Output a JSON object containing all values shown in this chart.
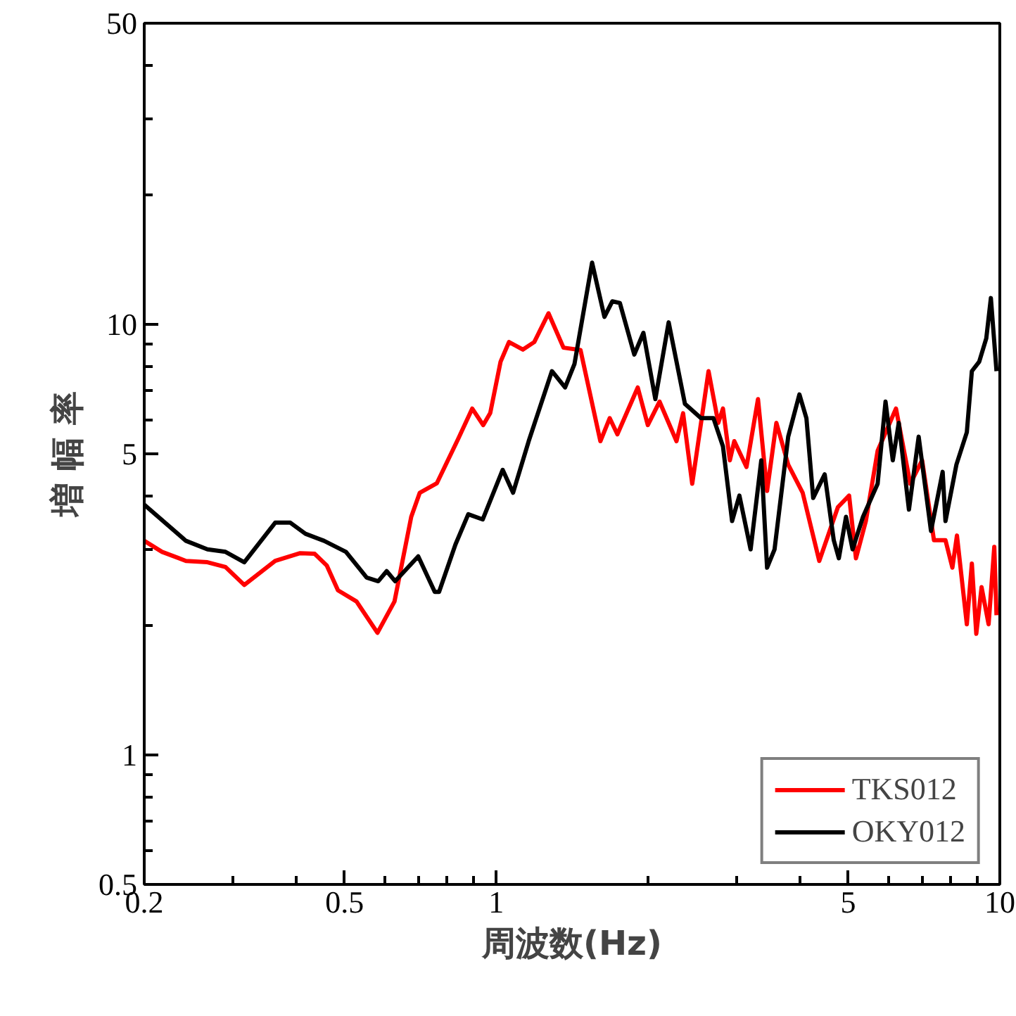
{
  "chart_data": {
    "type": "line",
    "xlabel": "周波数(Hz)",
    "ylabel": "増 幅 率",
    "log": "xy",
    "grid": false,
    "legend": "bottom right",
    "line_style": "solid",
    "marker": "none",
    "xlim": [
      0.2,
      10
    ],
    "ylim": [
      0.5,
      50
    ],
    "xticks": [
      0.2,
      {
        "value": 0.3,
        "label": null
      },
      {
        "value": 0.4,
        "label": null
      },
      0.5,
      {
        "value": 0.6,
        "label": null
      },
      {
        "value": 0.7,
        "label": null
      },
      {
        "value": 0.8,
        "label": null
      },
      {
        "value": 0.9,
        "label": null
      },
      1,
      {
        "value": 2,
        "label": null
      },
      {
        "value": 3,
        "label": null
      },
      {
        "value": 4,
        "label": null
      },
      5,
      {
        "value": 6,
        "label": null
      },
      {
        "value": 7,
        "label": null
      },
      {
        "value": 8,
        "label": null
      },
      {
        "value": 9,
        "label": null
      },
      10
    ],
    "yticks": [
      0.5,
      {
        "value": 0.6,
        "label": null
      },
      {
        "value": 0.7,
        "label": null
      },
      {
        "value": 0.8,
        "label": null
      },
      {
        "value": 0.9,
        "label": null
      },
      1,
      {
        "value": 2,
        "label": null
      },
      {
        "value": 3,
        "label": null
      },
      {
        "value": 4,
        "label": null
      },
      5,
      {
        "value": 6,
        "label": null
      },
      {
        "value": 7,
        "label": null
      },
      {
        "value": 8,
        "label": null
      },
      {
        "value": 9,
        "label": null
      },
      10,
      {
        "value": 20,
        "label": null
      },
      {
        "value": 30,
        "label": null
      },
      {
        "value": 40,
        "label": null
      },
      50
    ],
    "series": [
      {
        "name": "TKS012",
        "color": "#ff0000",
        "x": [
          0.2,
          0.217,
          0.242,
          0.267,
          0.29,
          0.316,
          0.364,
          0.408,
          0.436,
          0.461,
          0.485,
          0.528,
          0.581,
          0.628,
          0.678,
          0.705,
          0.762,
          0.84,
          0.896,
          0.942,
          0.973,
          1.02,
          1.06,
          1.13,
          1.19,
          1.27,
          1.36,
          1.47,
          1.61,
          1.68,
          1.74,
          1.91,
          2.0,
          2.11,
          2.28,
          2.35,
          2.45,
          2.64,
          2.76,
          2.82,
          2.91,
          2.97,
          3.14,
          3.31,
          3.45,
          3.6,
          3.8,
          4.06,
          4.38,
          4.77,
          5.02,
          5.18,
          5.42,
          5.72,
          6.22,
          6.64,
          7.01,
          7.4,
          7.8,
          8.05,
          8.22,
          8.6,
          8.8,
          8.98,
          9.2,
          9.5,
          9.75,
          9.85
        ],
        "values": [
          3.14,
          2.96,
          2.82,
          2.8,
          2.73,
          2.48,
          2.82,
          2.94,
          2.93,
          2.75,
          2.41,
          2.27,
          1.92,
          2.27,
          3.57,
          4.06,
          4.27,
          5.41,
          6.37,
          5.83,
          6.22,
          8.18,
          9.09,
          8.73,
          9.09,
          10.6,
          8.82,
          8.71,
          5.35,
          6.05,
          5.55,
          7.13,
          5.83,
          6.61,
          5.35,
          6.21,
          4.26,
          7.78,
          5.9,
          6.37,
          4.83,
          5.35,
          4.66,
          6.7,
          4.1,
          5.9,
          4.72,
          4.06,
          2.82,
          3.76,
          4.0,
          2.86,
          3.49,
          5.08,
          6.37,
          4.26,
          4.83,
          3.15,
          3.15,
          2.72,
          3.23,
          2.01,
          2.78,
          1.91,
          2.45,
          2.01,
          3.04,
          2.11
        ]
      },
      {
        "name": "OKY012",
        "color": "#000000",
        "x": [
          0.2,
          0.242,
          0.267,
          0.29,
          0.316,
          0.364,
          0.39,
          0.418,
          0.455,
          0.503,
          0.553,
          0.583,
          0.606,
          0.63,
          0.7,
          0.755,
          0.77,
          0.83,
          0.88,
          0.94,
          1.03,
          1.08,
          1.16,
          1.29,
          1.37,
          1.43,
          1.55,
          1.64,
          1.7,
          1.76,
          1.88,
          1.96,
          2.07,
          2.2,
          2.37,
          2.55,
          2.7,
          2.82,
          2.94,
          3.04,
          3.2,
          3.36,
          3.45,
          3.57,
          3.8,
          4.0,
          4.13,
          4.26,
          4.49,
          4.68,
          4.79,
          4.95,
          5.1,
          5.35,
          5.72,
          5.93,
          6.13,
          6.3,
          6.6,
          6.9,
          7.3,
          7.7,
          7.8,
          8.2,
          8.6,
          8.8,
          9.1,
          9.4,
          9.6,
          9.85
        ],
        "values": [
          3.81,
          3.14,
          3.0,
          2.96,
          2.8,
          3.46,
          3.46,
          3.26,
          3.14,
          2.96,
          2.58,
          2.53,
          2.67,
          2.53,
          2.89,
          2.39,
          2.39,
          3.08,
          3.62,
          3.52,
          4.59,
          4.06,
          5.35,
          7.78,
          7.13,
          8.08,
          13.9,
          10.4,
          11.3,
          11.2,
          8.5,
          9.55,
          6.7,
          10.1,
          6.53,
          6.05,
          6.05,
          5.2,
          3.49,
          4.0,
          3.0,
          4.83,
          2.72,
          3.0,
          5.48,
          6.87,
          6.05,
          3.95,
          4.48,
          3.15,
          2.86,
          3.57,
          3.0,
          3.57,
          4.26,
          6.61,
          4.83,
          5.9,
          3.71,
          5.48,
          3.31,
          4.54,
          3.49,
          4.72,
          5.61,
          7.78,
          8.18,
          9.27,
          11.5,
          7.78
        ]
      }
    ]
  }
}
